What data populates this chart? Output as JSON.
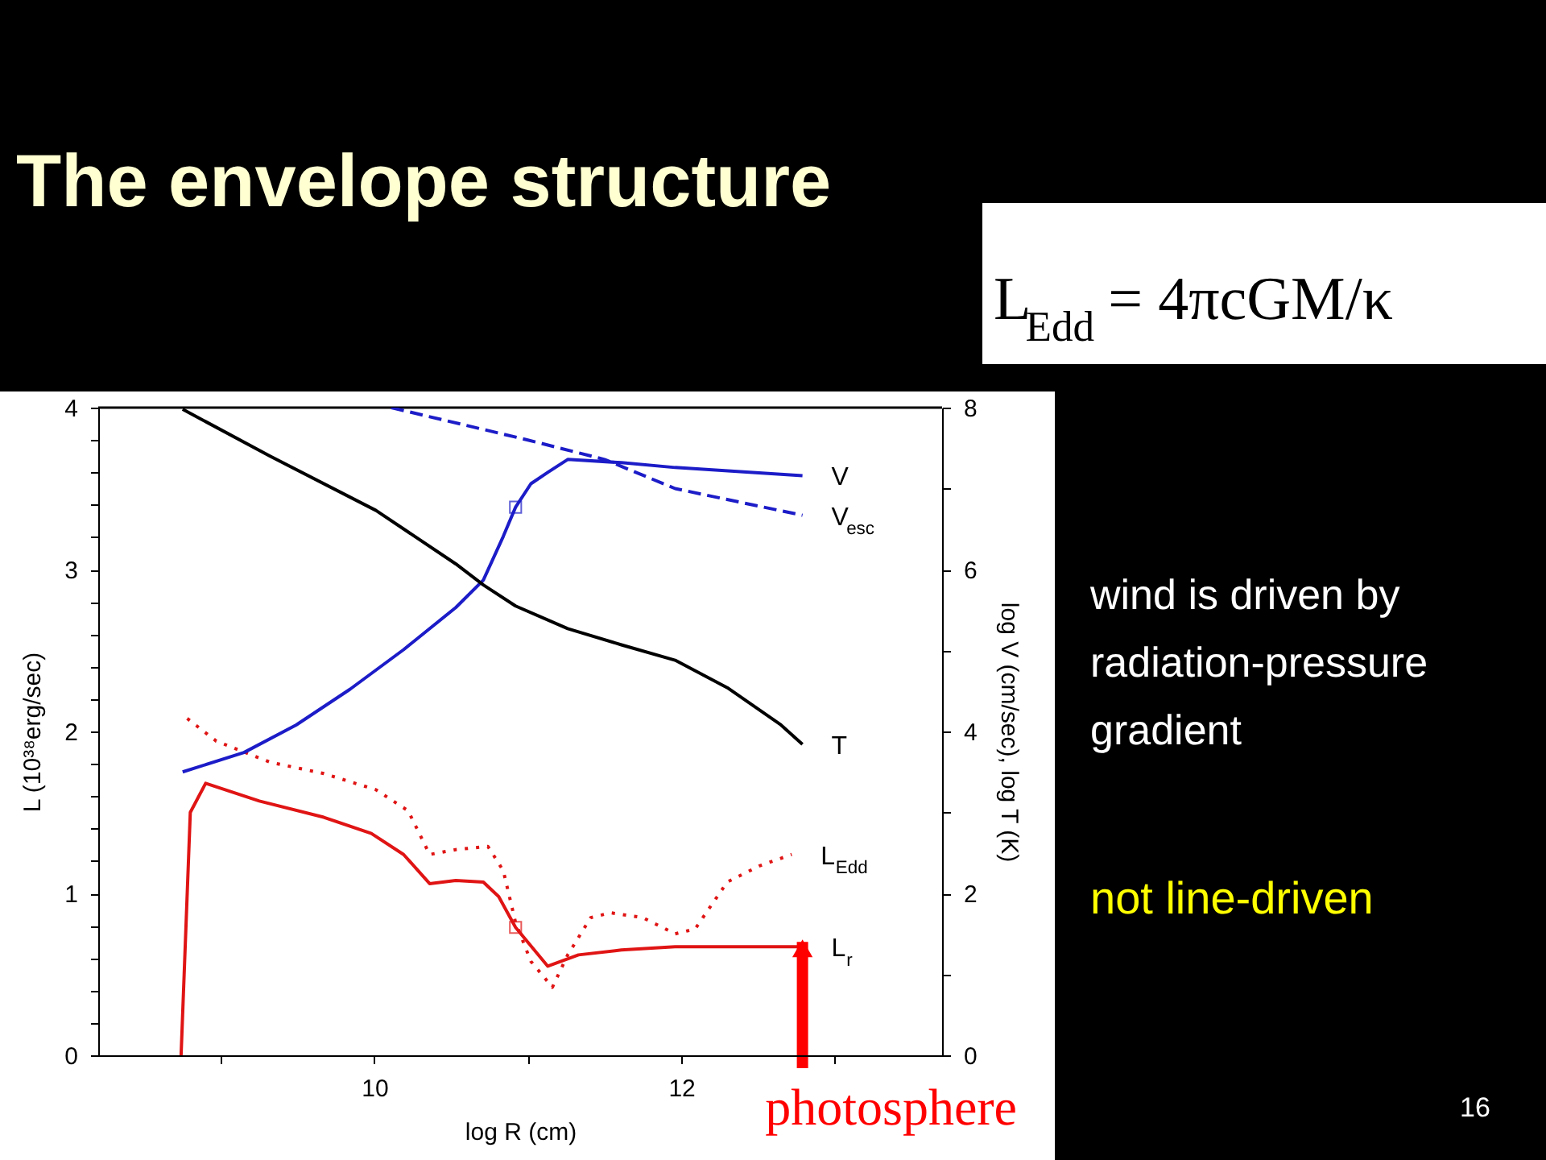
{
  "chart_data": {
    "type": "line",
    "title": "The envelope structure",
    "xlabel": "log R (cm)",
    "ylabel": "L (10³⁸erg/sec)",
    "y2label": "log V (cm/sec), log T (K)",
    "xlim": [
      8.2,
      13.7
    ],
    "ylim": [
      0,
      4
    ],
    "y2lim": [
      0,
      8
    ],
    "xticks": [
      {
        "value": 9,
        "label": null
      },
      10,
      {
        "value": 11,
        "label": null
      },
      12,
      {
        "value": 13,
        "label": null
      }
    ],
    "yticks": [
      0,
      {
        "value": 0.2,
        "label": null
      },
      {
        "value": 0.4,
        "label": null
      },
      {
        "value": 0.6,
        "label": null
      },
      {
        "value": 0.8,
        "label": null
      },
      1,
      {
        "value": 1.2,
        "label": null
      },
      {
        "value": 1.4,
        "label": null
      },
      {
        "value": 1.6,
        "label": null
      },
      {
        "value": 1.8,
        "label": null
      },
      2,
      {
        "value": 2.2,
        "label": null
      },
      {
        "value": 2.4,
        "label": null
      },
      {
        "value": 2.6,
        "label": null
      },
      {
        "value": 2.8,
        "label": null
      },
      3,
      {
        "value": 3.2,
        "label": null
      },
      {
        "value": 3.4,
        "label": null
      },
      {
        "value": 3.6,
        "label": null
      },
      {
        "value": 3.8,
        "label": null
      },
      4
    ],
    "y2ticks": [
      0,
      {
        "value": 1,
        "label": null
      },
      2,
      {
        "value": 3,
        "label": null
      },
      4,
      {
        "value": 5,
        "label": null
      },
      6,
      {
        "value": 7,
        "label": null
      },
      8
    ],
    "grid": false,
    "series": [
      {
        "name": "L$_{r}$",
        "color": "#e01414",
        "x": [
          8.74,
          8.76,
          8.8,
          8.9,
          9.25,
          9.67,
          9.98,
          10.19,
          10.36,
          10.53,
          10.71,
          10.81,
          10.92,
          11.13,
          11.33,
          11.61,
          11.96,
          12.79
        ],
        "values": [
          0,
          0.5,
          1.5,
          1.68,
          1.57,
          1.47,
          1.37,
          1.24,
          1.06,
          1.08,
          1.07,
          0.98,
          0.79,
          0.55,
          0.62,
          0.65,
          0.67,
          0.67
        ]
      },
      {
        "name": "L$_{Edd}$",
        "color": "#e01414",
        "line_style": "dotted",
        "x": [
          8.78,
          8.97,
          9.32,
          9.67,
          10.01,
          10.22,
          10.36,
          10.53,
          10.74,
          10.84,
          10.92,
          11.02,
          11.16,
          11.26,
          11.41,
          11.54,
          11.75,
          11.96,
          12.09,
          12.3,
          12.51,
          12.72
        ],
        "values": [
          2.08,
          1.94,
          1.81,
          1.74,
          1.64,
          1.51,
          1.24,
          1.27,
          1.29,
          1.14,
          0.82,
          0.58,
          0.42,
          0.62,
          0.85,
          0.88,
          0.85,
          0.75,
          0.78,
          1.07,
          1.17,
          1.24
        ]
      },
      {
        "type": "scatter",
        "marker": "square",
        "color": "#e01414",
        "x": [
          10.92
        ],
        "values": [
          0.79
        ]
      },
      {
        "name": "V",
        "color": "#1c1cc8",
        "axis": "y2",
        "x": [
          8.75,
          9.15,
          9.49,
          9.84,
          10.19,
          10.53,
          10.71,
          10.84,
          10.92,
          11.02,
          11.13,
          11.26,
          11.61,
          11.96,
          12.79
        ],
        "values": [
          3.5,
          3.74,
          4.08,
          4.52,
          5.01,
          5.53,
          5.87,
          6.41,
          6.77,
          7.06,
          7.2,
          7.36,
          7.32,
          7.26,
          7.16
        ]
      },
      {
        "name": "V$_{esc}$",
        "color": "#1c1cc8",
        "axis": "y2",
        "line_style": "dashed",
        "x": [
          10.11,
          11.0,
          11.5,
          11.96,
          12.79
        ],
        "values": [
          8.0,
          7.6,
          7.36,
          7.0,
          6.67
        ]
      },
      {
        "name": "T",
        "color": "#000000",
        "axis": "y2",
        "x": [
          8.75,
          9.32,
          10.01,
          10.53,
          10.71,
          10.92,
          11.26,
          11.61,
          11.96,
          12.3,
          12.65,
          12.79
        ],
        "values": [
          7.98,
          7.4,
          6.73,
          6.07,
          5.81,
          5.55,
          5.27,
          5.07,
          4.88,
          4.54,
          4.08,
          3.84
        ]
      },
      {
        "type": "scatter",
        "marker": "square",
        "color": "#1c1cc8",
        "axis": "y2",
        "x": [
          10.92
        ],
        "values": [
          6.77
        ]
      }
    ],
    "annotations": [
      "L$_{Edd}$ = 4πcGM/κ",
      "wind is driven by radiation-pressure gradient",
      "not line-driven",
      "16",
      {
        "text": "photosphere",
        "x": 12.79,
        "y": 0.7
      }
    ]
  }
}
